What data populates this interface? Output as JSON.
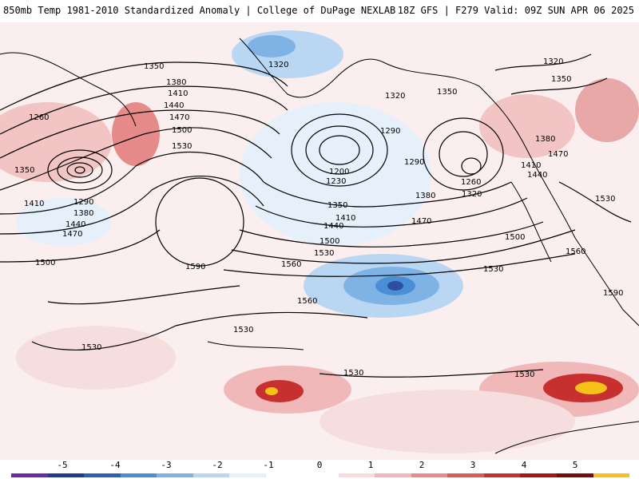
{
  "header": {
    "title_left": "850mb Temp 1981-2010 Standardized Anomaly | College of DuPage NEXLAB",
    "title_right": "18Z GFS | F279 Valid: 09Z SUN APR 06 2025"
  },
  "map": {
    "contour_labels": [
      {
        "text": "1350"
      },
      {
        "text": "1380"
      },
      {
        "text": "1410"
      },
      {
        "text": "1440"
      },
      {
        "text": "1470"
      },
      {
        "text": "1500"
      },
      {
        "text": "1530"
      },
      {
        "text": "1260"
      },
      {
        "text": "1350"
      },
      {
        "text": "1410"
      },
      {
        "text": "1290"
      },
      {
        "text": "1380"
      },
      {
        "text": "1440"
      },
      {
        "text": "1470"
      },
      {
        "text": "1500"
      },
      {
        "text": "1590"
      },
      {
        "text": "1560"
      },
      {
        "text": "1530"
      },
      {
        "text": "1560"
      },
      {
        "text": "1320"
      },
      {
        "text": "1320"
      },
      {
        "text": "1350"
      },
      {
        "text": "1290"
      },
      {
        "text": "1200"
      },
      {
        "text": "1230"
      },
      {
        "text": "1290"
      },
      {
        "text": "1260"
      },
      {
        "text": "1320"
      },
      {
        "text": "1380"
      },
      {
        "text": "1350"
      },
      {
        "text": "1410"
      },
      {
        "text": "1440"
      },
      {
        "text": "1470"
      },
      {
        "text": "1500"
      },
      {
        "text": "1530"
      },
      {
        "text": "1500"
      },
      {
        "text": "1530"
      },
      {
        "text": "1320"
      },
      {
        "text": "1350"
      },
      {
        "text": "1380"
      },
      {
        "text": "1470"
      },
      {
        "text": "1410"
      },
      {
        "text": "1440"
      },
      {
        "text": "1530"
      },
      {
        "text": "1560"
      },
      {
        "text": "1590"
      },
      {
        "text": "1530"
      },
      {
        "text": "1530"
      },
      {
        "text": "1530"
      }
    ]
  },
  "colorbar": {
    "ticks": [
      "-5",
      "-4",
      "-3",
      "-2",
      "-1",
      "0",
      "1",
      "2",
      "3",
      "4",
      "5"
    ],
    "colors": [
      "#6b2aa8",
      "#1f3a8a",
      "#2d5fb5",
      "#4a8fd6",
      "#7fb3e6",
      "#b9d6f2",
      "#e6f0fa",
      "#ffffff",
      "#ffffff",
      "#f7dede",
      "#f0b8b8",
      "#e68a8a",
      "#d95c5c",
      "#c83030",
      "#a01818",
      "#7a0a0a",
      "#f5c218"
    ]
  }
}
